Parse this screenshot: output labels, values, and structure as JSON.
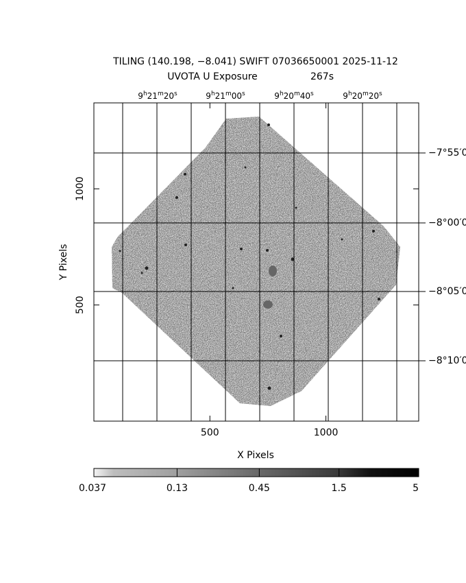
{
  "chart_data": {
    "type": "image",
    "title": "TILING (140.198, −8.041) SWIFT 07036650001 2025-11-12",
    "subtitle": [
      "UVOTA U Exposure",
      "267s"
    ],
    "xlabel": "X Pixels",
    "ylabel": "Y Pixels",
    "xlim": [
      0,
      1400
    ],
    "xticks": [
      500,
      1000
    ],
    "ylim": [
      0,
      1370
    ],
    "yticks": [
      500,
      1000
    ],
    "ra_labels": [
      [
        "9",
        "h",
        "21",
        "m",
        "20",
        "s"
      ],
      [
        "9",
        "h",
        "21",
        "m",
        "00",
        "s"
      ],
      [
        "9",
        "h",
        "20",
        "m",
        "40",
        "s"
      ],
      [
        "9",
        "h",
        "20",
        "m",
        "20",
        "s"
      ]
    ],
    "dec_labels": [
      "−7°55′00",
      "−8°00′00",
      "−8°05′00",
      "−8°10′00"
    ],
    "colorbar": {
      "log": true,
      "lim": [
        0.037,
        5
      ],
      "ticks": [
        0.037,
        0.13,
        0.45,
        1.5,
        5
      ]
    }
  }
}
